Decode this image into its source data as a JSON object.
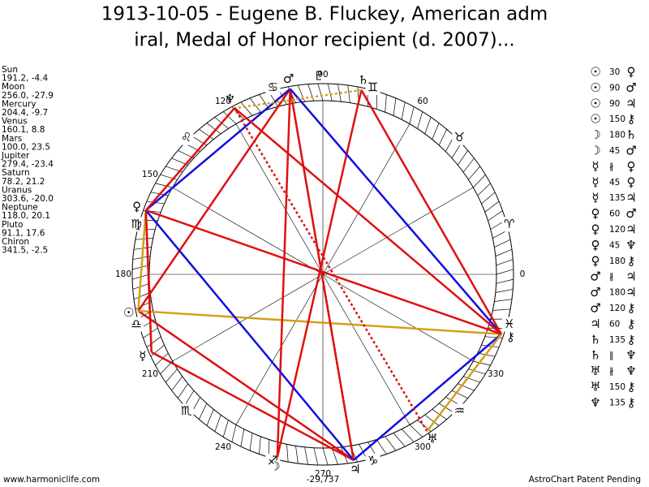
{
  "header": {
    "title": [
      "1913-10-05 - Eugene B. Fluckey, American adm",
      "iral, Medal of Honor recipient (d. 2007)..."
    ]
  },
  "planets": [
    {
      "name": "Sun",
      "glyph": "☉",
      "position": "191.2, -4.4"
    },
    {
      "name": "Moon",
      "glyph": "☽",
      "position": "256.0, -27.9"
    },
    {
      "name": "Mercury",
      "glyph": "☿",
      "position": "204.4, -9.7"
    },
    {
      "name": "Venus",
      "glyph": "♀",
      "position": "160.1, 8.8"
    },
    {
      "name": "Mars",
      "glyph": "♂",
      "position": "100.0, 23.5"
    },
    {
      "name": "Jupiter",
      "glyph": "♃",
      "position": "279.4, -23.4"
    },
    {
      "name": "Saturn",
      "glyph": "♄",
      "position": "78.2, 21.2"
    },
    {
      "name": "Uranus",
      "glyph": "♅",
      "position": "303.6, -20.0"
    },
    {
      "name": "Neptune",
      "glyph": "♆",
      "position": "118.0, 20.1"
    },
    {
      "name": "Pluto",
      "glyph": "♇",
      "position": "91.1, 17.6"
    },
    {
      "name": "Chiron",
      "glyph": "⚷",
      "position": "341.5, -2.5"
    }
  ],
  "zodiac": [
    "♈",
    "♉",
    "♊",
    "♋",
    "♌",
    "♍",
    "♎",
    "♏",
    "♐",
    "♑",
    "♒",
    "♓"
  ],
  "degree_labels": [
    0,
    60,
    90,
    120,
    150,
    180,
    210,
    240,
    270,
    300,
    330
  ],
  "wheel_note": "-29,737",
  "aspects": [
    {
      "a": "☉",
      "aspect": "30",
      "b": "♀",
      "color": "#d4a017"
    },
    {
      "a": "☉",
      "aspect": "90",
      "b": "♂",
      "color": "#e01010"
    },
    {
      "a": "☉",
      "aspect": "90",
      "b": "♃",
      "color": "#e01010"
    },
    {
      "a": "☉",
      "aspect": "150",
      "b": "⚷",
      "color": "#d4a017"
    },
    {
      "a": "☽",
      "aspect": "180",
      "b": "♄",
      "color": "#e01010"
    },
    {
      "a": "☽",
      "aspect": "45",
      "b": "♂",
      "color": "#e01010"
    },
    {
      "a": "☿",
      "aspect": "∦",
      "b": "♀",
      "color": "#e01010",
      "dashed": true
    },
    {
      "a": "☿",
      "aspect": "45",
      "b": "♀",
      "color": "#e01010"
    },
    {
      "a": "☿",
      "aspect": "135",
      "b": "♃",
      "color": "#e01010"
    },
    {
      "a": "♀",
      "aspect": "60",
      "b": "♂",
      "color": "#1010e0"
    },
    {
      "a": "♀",
      "aspect": "120",
      "b": "♃",
      "color": "#1010e0"
    },
    {
      "a": "♀",
      "aspect": "45",
      "b": "♆",
      "color": "#e01010"
    },
    {
      "a": "♀",
      "aspect": "180",
      "b": "⚷",
      "color": "#e01010"
    },
    {
      "a": "♂",
      "aspect": "∦",
      "b": "♃",
      "color": "#e01010",
      "dashed": true
    },
    {
      "a": "♂",
      "aspect": "180",
      "b": "♃",
      "color": "#e01010"
    },
    {
      "a": "♂",
      "aspect": "120",
      "b": "⚷",
      "color": "#1010e0"
    },
    {
      "a": "♃",
      "aspect": "60",
      "b": "⚷",
      "color": "#1010e0"
    },
    {
      "a": "♄",
      "aspect": "135",
      "b": "⚷",
      "color": "#e01010"
    },
    {
      "a": "♄",
      "aspect": "‖",
      "b": "♆",
      "color": "#d4a017",
      "dashed": true
    },
    {
      "a": "♅",
      "aspect": "∦",
      "b": "♆",
      "color": "#e01010",
      "dashed": true
    },
    {
      "a": "♅",
      "aspect": "150",
      "b": "⚷",
      "color": "#d4a017"
    },
    {
      "a": "♆",
      "aspect": "135",
      "b": "⚷",
      "color": "#e01010"
    }
  ],
  "footer": {
    "left": "www.harmoniclife.com",
    "right": "AstroChart Patent Pending"
  }
}
